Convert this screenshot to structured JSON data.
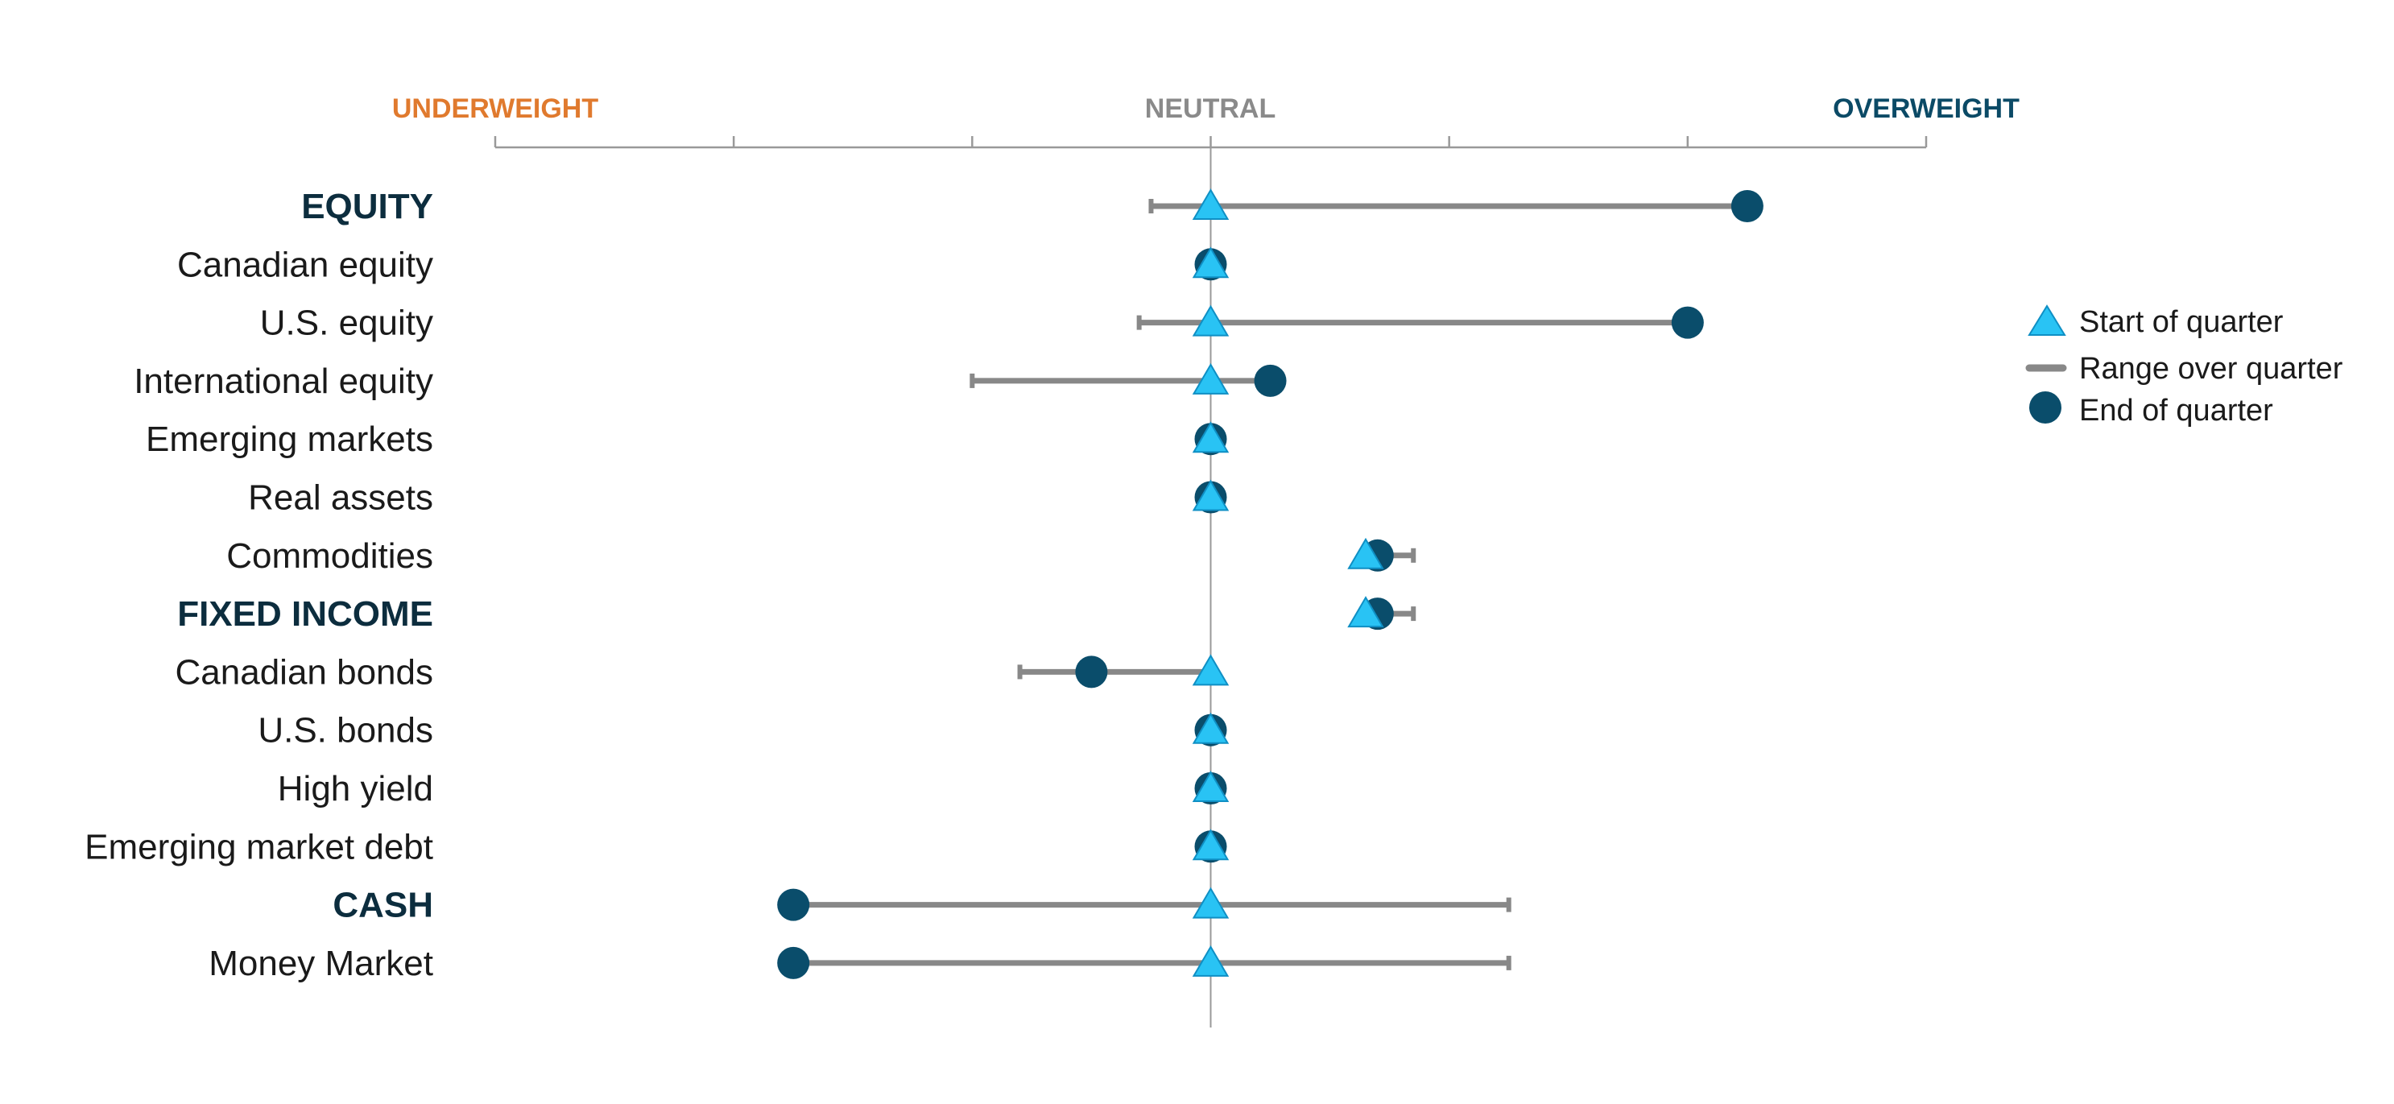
{
  "colors": {
    "underweight": "#e07a2e",
    "neutral": "#8a8a8a",
    "overweight": "#0b4a66",
    "start_marker": "#29c3f4",
    "start_marker_stroke": "#0f8fc4",
    "end_marker": "#0a4d6b",
    "range_line": "#888888",
    "axis": "#999999",
    "heading_text": "#0c2d3e"
  },
  "chart_data": {
    "type": "range-dot",
    "scale": {
      "labels": [
        "UNDERWEIGHT",
        "NEUTRAL",
        "OVERWEIGHT"
      ],
      "min": -3,
      "max": 3,
      "neutral": 0,
      "ticks": [
        -3,
        -2,
        -1,
        0,
        1,
        2,
        3
      ]
    },
    "legend": {
      "placement": "right",
      "start": "Start of quarter",
      "range": "Range over quarter",
      "end": "End of quarter"
    },
    "rows": [
      {
        "label": "EQUITY",
        "heading": true,
        "start": 0,
        "end": 2.25,
        "range_min": -0.25,
        "range_max": 2.25
      },
      {
        "label": "Canadian equity",
        "heading": false,
        "start": 0,
        "end": 0,
        "range_min": 0,
        "range_max": 0
      },
      {
        "label": "U.S. equity",
        "heading": false,
        "start": 0,
        "end": 2.0,
        "range_min": -0.3,
        "range_max": 2.0
      },
      {
        "label": "International equity",
        "heading": false,
        "start": 0,
        "end": 0.25,
        "range_min": -1.0,
        "range_max": 0.25
      },
      {
        "label": "Emerging markets",
        "heading": false,
        "start": 0,
        "end": 0,
        "range_min": 0,
        "range_max": 0
      },
      {
        "label": "Real assets",
        "heading": false,
        "start": 0,
        "end": 0,
        "range_min": 0,
        "range_max": 0
      },
      {
        "label": "Commodities",
        "heading": false,
        "start": 0.65,
        "end": 0.7,
        "range_min": 0.65,
        "range_max": 0.85
      },
      {
        "label": "FIXED INCOME",
        "heading": true,
        "start": 0.65,
        "end": 0.7,
        "range_min": 0.65,
        "range_max": 0.85
      },
      {
        "label": "Canadian bonds",
        "heading": false,
        "start": 0,
        "end": -0.5,
        "range_min": -0.8,
        "range_max": 0
      },
      {
        "label": "U.S. bonds",
        "heading": false,
        "start": 0,
        "end": 0,
        "range_min": 0,
        "range_max": 0
      },
      {
        "label": "High yield",
        "heading": false,
        "start": 0,
        "end": 0,
        "range_min": 0,
        "range_max": 0
      },
      {
        "label": "Emerging market debt",
        "heading": false,
        "start": 0,
        "end": 0,
        "range_min": 0,
        "range_max": 0
      },
      {
        "label": "CASH",
        "heading": true,
        "start": 0,
        "end": -1.75,
        "range_min": -1.75,
        "range_max": 1.25
      },
      {
        "label": "Money Market",
        "heading": false,
        "start": 0,
        "end": -1.75,
        "range_min": -1.75,
        "range_max": 1.25
      }
    ]
  }
}
